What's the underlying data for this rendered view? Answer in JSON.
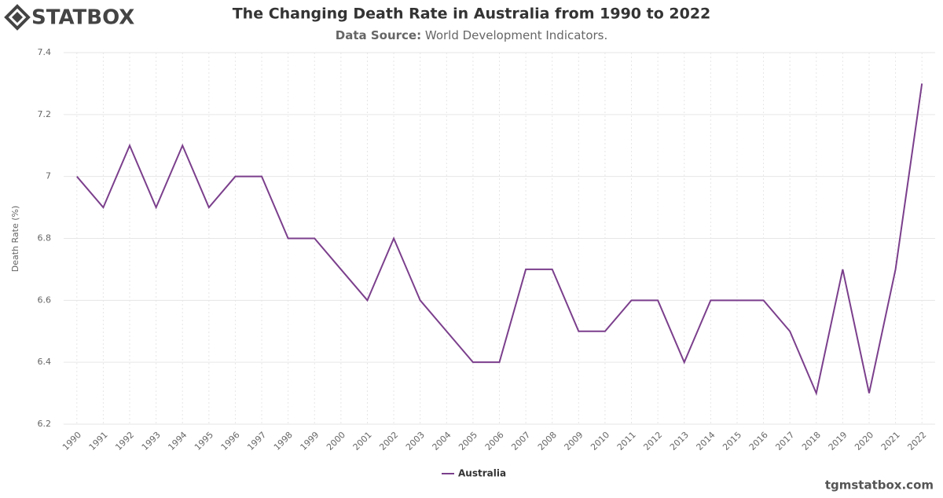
{
  "brand": "STATBOX",
  "footer": "tgmstatbox.com",
  "chart_data": {
    "type": "line",
    "title": "The Changing Death Rate in Australia from 1990 to 2022",
    "subtitle_label": "Data Source:",
    "subtitle": "World Development Indicators.",
    "y_label": "Death Rate (%)",
    "categories": [
      "1990",
      "1991",
      "1992",
      "1993",
      "1994",
      "1995",
      "1996",
      "1997",
      "1998",
      "1999",
      "2000",
      "2001",
      "2002",
      "2003",
      "2004",
      "2005",
      "2006",
      "2007",
      "2008",
      "2009",
      "2010",
      "2011",
      "2012",
      "2013",
      "2014",
      "2015",
      "2016",
      "2017",
      "2018",
      "2019",
      "2020",
      "2021",
      "2022"
    ],
    "series": [
      {
        "name": "Australia",
        "color": "#7b3f8c",
        "values": [
          7.0,
          6.9,
          7.1,
          6.9,
          7.1,
          6.9,
          7.0,
          7.0,
          6.8,
          6.8,
          6.7,
          6.6,
          6.8,
          6.6,
          6.5,
          6.4,
          6.4,
          6.7,
          6.7,
          6.5,
          6.5,
          6.6,
          6.6,
          6.4,
          6.6,
          6.6,
          6.6,
          6.5,
          6.3,
          6.7,
          6.3,
          6.7,
          7.3
        ]
      }
    ],
    "ylim": [
      6.2,
      7.4
    ],
    "yticks": [
      6.2,
      6.4,
      6.6,
      6.8,
      7,
      7.2,
      7.4
    ],
    "grid": true
  }
}
